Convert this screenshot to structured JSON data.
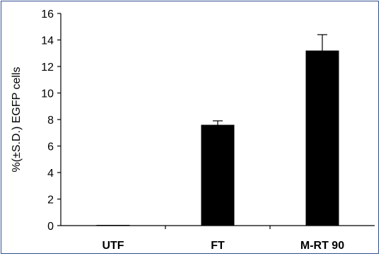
{
  "chart_data": {
    "type": "bar",
    "categories": [
      "UTF",
      "FT",
      "M-RT 90"
    ],
    "values": [
      0.05,
      7.6,
      13.2
    ],
    "error": [
      0,
      0.3,
      1.2
    ],
    "ylabel": "%(±S.D.) EGFP cells",
    "xlabel": "",
    "ylim": [
      0,
      16
    ],
    "yticks": [
      0,
      2,
      4,
      6,
      8,
      10,
      12,
      14,
      16
    ],
    "grid": false,
    "bar_color": "#000000"
  }
}
